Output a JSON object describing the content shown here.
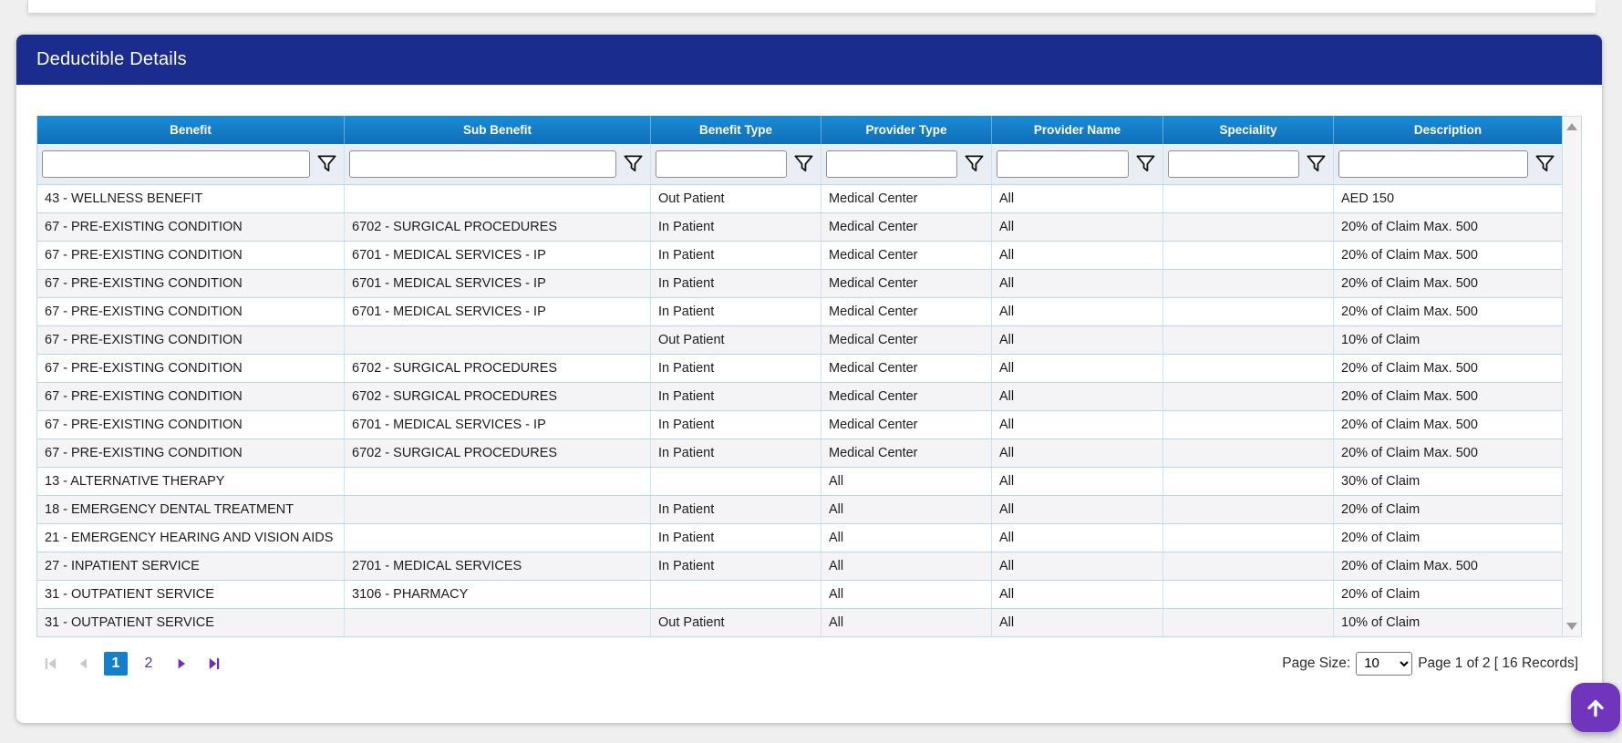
{
  "panel": {
    "title": "Deductible Details"
  },
  "table": {
    "columns": [
      {
        "key": "benefit",
        "label": "Benefit"
      },
      {
        "key": "sub-benefit",
        "label": "Sub Benefit"
      },
      {
        "key": "benefit-type",
        "label": "Benefit Type"
      },
      {
        "key": "provider-type",
        "label": "Provider Type"
      },
      {
        "key": "provider-name",
        "label": "Provider Name"
      },
      {
        "key": "speciality",
        "label": "Speciality"
      },
      {
        "key": "description",
        "label": "Description"
      }
    ],
    "rows": [
      [
        "43 - WELLNESS BENEFIT",
        "",
        "Out Patient",
        "Medical Center",
        "All",
        "",
        "AED 150"
      ],
      [
        "67 - PRE-EXISTING CONDITION",
        "6702 - SURGICAL PROCEDURES",
        "In Patient",
        "Medical Center",
        "All",
        "",
        "20% of Claim Max. 500"
      ],
      [
        "67 - PRE-EXISTING CONDITION",
        "6701 - MEDICAL SERVICES - IP",
        "In Patient",
        "Medical Center",
        "All",
        "",
        "20% of Claim Max. 500"
      ],
      [
        "67 - PRE-EXISTING CONDITION",
        "6701 - MEDICAL SERVICES - IP",
        "In Patient",
        "Medical Center",
        "All",
        "",
        "20% of Claim Max. 500"
      ],
      [
        "67 - PRE-EXISTING CONDITION",
        "6701 - MEDICAL SERVICES - IP",
        "In Patient",
        "Medical Center",
        "All",
        "",
        "20% of Claim Max. 500"
      ],
      [
        "67 - PRE-EXISTING CONDITION",
        "",
        "Out Patient",
        "Medical Center",
        "All",
        "",
        "10% of Claim"
      ],
      [
        "67 - PRE-EXISTING CONDITION",
        "6702 - SURGICAL PROCEDURES",
        "In Patient",
        "Medical Center",
        "All",
        "",
        "20% of Claim Max. 500"
      ],
      [
        "67 - PRE-EXISTING CONDITION",
        "6702 - SURGICAL PROCEDURES",
        "In Patient",
        "Medical Center",
        "All",
        "",
        "20% of Claim Max. 500"
      ],
      [
        "67 - PRE-EXISTING CONDITION",
        "6701 - MEDICAL SERVICES - IP",
        "In Patient",
        "Medical Center",
        "All",
        "",
        "20% of Claim Max. 500"
      ],
      [
        "67 - PRE-EXISTING CONDITION",
        "6702 - SURGICAL PROCEDURES",
        "In Patient",
        "Medical Center",
        "All",
        "",
        "20% of Claim Max. 500"
      ],
      [
        "13 - ALTERNATIVE THERAPY",
        "",
        "",
        "All",
        "All",
        "",
        "30% of Claim"
      ],
      [
        "18 - EMERGENCY DENTAL TREATMENT",
        "",
        "In Patient",
        "All",
        "All",
        "",
        "20% of Claim"
      ],
      [
        "21 - EMERGENCY HEARING AND VISION AIDS",
        "",
        "In Patient",
        "All",
        "All",
        "",
        "20% of Claim"
      ],
      [
        "27 - INPATIENT SERVICE",
        "2701 - MEDICAL SERVICES",
        "In Patient",
        "All",
        "All",
        "",
        "20% of Claim Max. 500"
      ],
      [
        "31 - OUTPATIENT SERVICE",
        "3106 - PHARMACY",
        "",
        "All",
        "All",
        "",
        "20% of Claim"
      ],
      [
        "31 - OUTPATIENT SERVICE",
        "",
        "Out Patient",
        "All",
        "All",
        "",
        "10% of Claim"
      ]
    ]
  },
  "pagination": {
    "pages": [
      "1",
      "2"
    ],
    "active_page": "1",
    "page_size_label": "Page Size:",
    "page_size_value": "10",
    "summary": "Page 1 of 2 [ 16 Records]"
  },
  "colors": {
    "panel_header": "#1a2d8e",
    "grid_header": "#1280ca",
    "active_page": "#1580c9",
    "accent_purple": "#7134bd",
    "row_alt": "#f4f4f6"
  },
  "icons": {
    "filter": "funnel-icon",
    "pager": [
      "first-page-icon",
      "prev-page-icon",
      "next-page-icon",
      "last-page-icon"
    ],
    "scroll_top": "arrow-up-icon",
    "scrollbar": [
      "scroll-up-icon",
      "scroll-down-icon"
    ]
  }
}
